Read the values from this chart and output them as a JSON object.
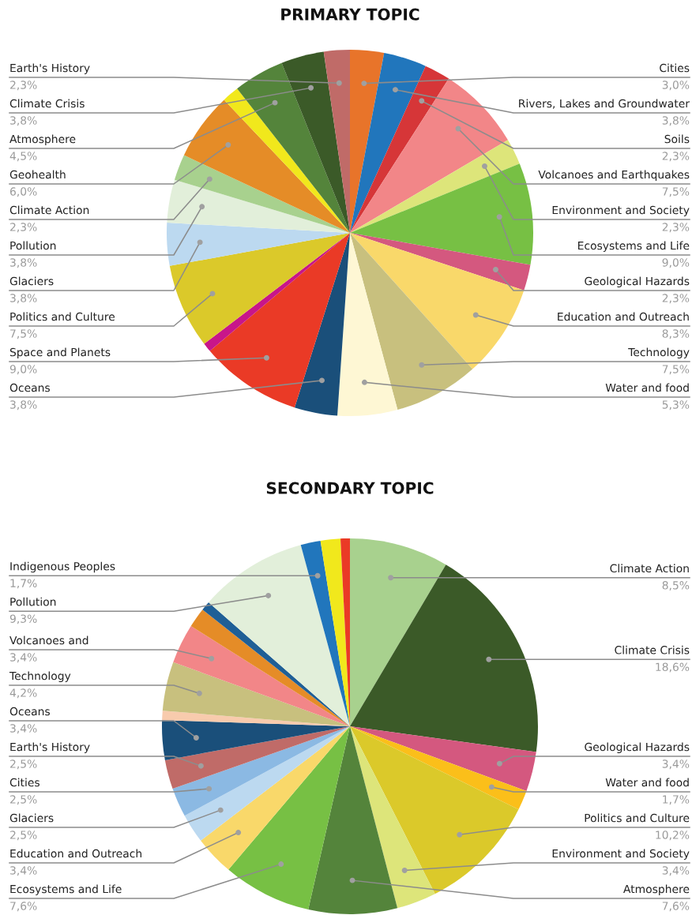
{
  "chart_data": [
    {
      "type": "pie",
      "title": "PRIMARY TOPIC",
      "categories": [
        "Cities",
        "Rivers, Lakes and Groundwater",
        "Soils",
        "Volcanoes and Earthquakes",
        "Environment and Society",
        "Ecosystems and Life",
        "Geological Hazards",
        "Education and Outreach",
        "Technology",
        "Water and food",
        "Oceans",
        "Space and Planets",
        null,
        "Politics and Culture",
        "Glaciers",
        "Pollution",
        "Climate Action",
        "Geohealth",
        null,
        "Atmosphere",
        "Climate Crisis",
        "Earth's History"
      ],
      "values": [
        3.0,
        3.8,
        2.3,
        7.5,
        2.3,
        9.0,
        2.3,
        8.3,
        7.5,
        5.3,
        3.8,
        9.0,
        0.8,
        7.5,
        3.8,
        3.8,
        2.3,
        6.0,
        1.5,
        4.5,
        3.8,
        2.3
      ],
      "value_labels": [
        "3,0%",
        "3,8%",
        "2,3%",
        "7,5%",
        "2,3%",
        "9,0%",
        "2,3%",
        "8,3%",
        "7,5%",
        "5,3%",
        "3,8%",
        "9,0%",
        null,
        "7,5%",
        "3,8%",
        "3,8%",
        "2,3%",
        "6,0%",
        null,
        "4,5%",
        "3,8%",
        "2,3%"
      ],
      "colors": [
        "#e8742a",
        "#2176bc",
        "#d63638",
        "#f28688",
        "#dde57a",
        "#77c044",
        "#d4587f",
        "#f9d86a",
        "#c8c07e",
        "#fef7d4",
        "#1a4f7a",
        "#ea3a26",
        "#c8168a",
        "#dbc92a",
        "#bcd9f0",
        "#e2efda",
        "#a8d18e",
        "#e58c27",
        "#f1e81c",
        "#54843b",
        "#3b5a28",
        "#c06b68"
      ]
    },
    {
      "type": "pie",
      "title": "SECONDARY TOPIC",
      "categories": [
        "Climate Action",
        "Climate Crisis",
        "Geological Hazards",
        "Water and food",
        "Politics and Culture",
        "Environment and Society",
        "Atmosphere",
        "Ecosystems and Life",
        "Education and Outreach",
        "Glaciers",
        "Cities",
        "Earth's History",
        "Oceans",
        null,
        "Technology",
        "Volcanoes and",
        null,
        null,
        "Pollution",
        "Indigenous Peoples",
        null,
        null
      ],
      "values": [
        8.5,
        18.6,
        3.4,
        1.7,
        10.2,
        3.4,
        7.6,
        7.6,
        3.4,
        2.5,
        2.5,
        2.5,
        3.4,
        0.8,
        4.2,
        3.4,
        1.7,
        0.8,
        9.3,
        1.7,
        1.7,
        0.8
      ],
      "value_labels": [
        "8,5%",
        "18,6%",
        "3,4%",
        "1,7%",
        "10,2%",
        "3,4%",
        "7,6%",
        "7,6%",
        "3,4%",
        "2,5%",
        "2,5%",
        "2,5%",
        "3,4%",
        null,
        "4,2%",
        "3,4%",
        null,
        null,
        "9,3%",
        "1,7%",
        null,
        null
      ],
      "colors": [
        "#a8d18e",
        "#3b5a28",
        "#d4587f",
        "#fbbf1a",
        "#dbc92a",
        "#dde57a",
        "#54843b",
        "#77c044",
        "#f9d86a",
        "#bcd9f0",
        "#8bb9e3",
        "#c06b68",
        "#1a4f7a",
        "#f8cbad",
        "#c8c07e",
        "#f28688",
        "#e58c27",
        "#1f5f96",
        "#e2efda",
        "#2176bc",
        "#f1e81c",
        "#ea3a26"
      ]
    }
  ]
}
